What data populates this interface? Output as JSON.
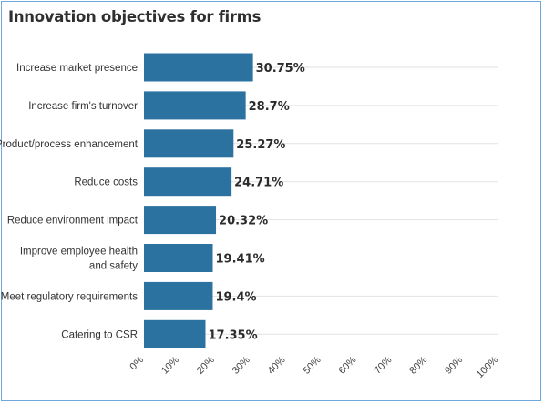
{
  "chart_data": {
    "type": "bar",
    "orientation": "horizontal",
    "title": "Innovation objectives for firms",
    "categories": [
      "Increase market presence",
      "Increase firm's turnover",
      "Product/process enhancement",
      "Reduce costs",
      "Reduce environment impact",
      "Improve employee health and safety",
      "Meet regulatory requirements",
      "Catering to CSR"
    ],
    "values": [
      30.75,
      28.7,
      25.27,
      24.71,
      20.32,
      19.41,
      19.4,
      17.35
    ],
    "value_labels": [
      "30.75%",
      "28.7%",
      "25.27%",
      "24.71%",
      "20.32%",
      "19.41%",
      "19.4%",
      "17.35%"
    ],
    "xlim": [
      0,
      100
    ],
    "x_ticks": [
      "0%",
      "10%",
      "20%",
      "30%",
      "40%",
      "50%",
      "60%",
      "70%",
      "80%",
      "90%",
      "100%"
    ],
    "grid": true,
    "bar_color": "#2c72a0"
  }
}
